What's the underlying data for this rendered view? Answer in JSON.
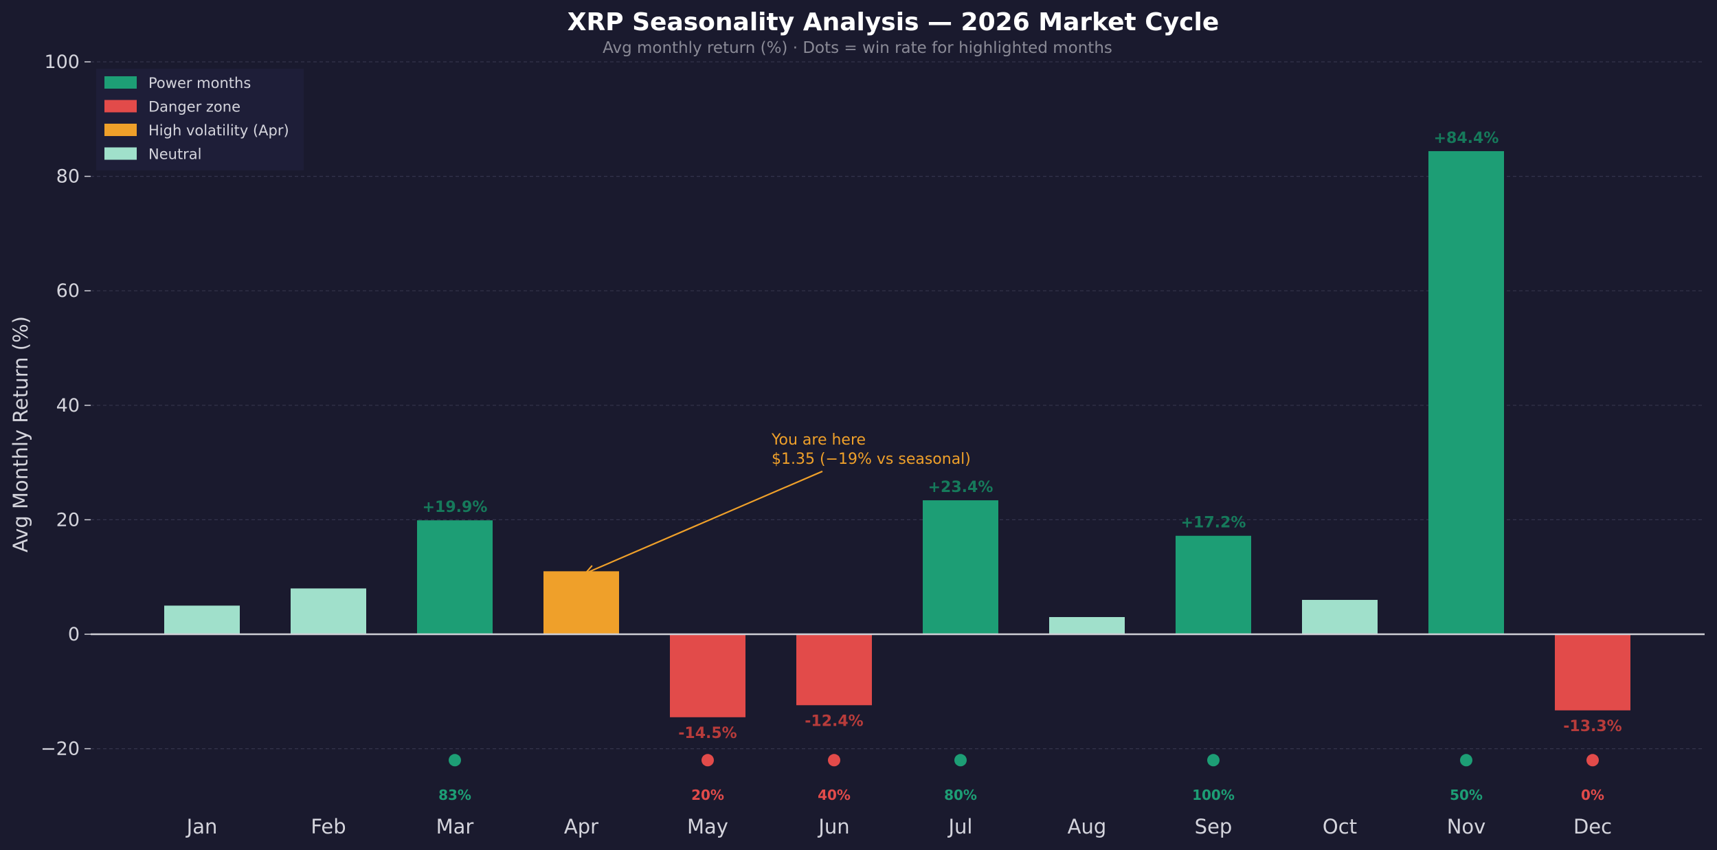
{
  "chart_data": {
    "type": "bar",
    "title": "XRP Seasonality Analysis — 2026 Market Cycle",
    "subtitle": "Avg monthly return (%) · Dots = win rate for highlighted months",
    "ylabel": "Avg Monthly Return (%)",
    "xlabel": "",
    "ylim": [
      -30,
      100
    ],
    "yticks": [
      -20,
      0,
      20,
      40,
      60,
      80,
      100
    ],
    "ytick_labels": [
      "−20",
      "0",
      "20",
      "40",
      "60",
      "80",
      "100"
    ],
    "grid": true,
    "categories": [
      "Jan",
      "Feb",
      "Mar",
      "Apr",
      "May",
      "Jun",
      "Jul",
      "Aug",
      "Sep",
      "Oct",
      "Nov",
      "Dec"
    ],
    "values": [
      5.0,
      8.0,
      19.9,
      11.0,
      -14.5,
      -12.4,
      23.4,
      3.0,
      17.2,
      6.0,
      84.4,
      -13.3
    ],
    "bar_categories": [
      "neutral",
      "neutral",
      "power",
      "volatile",
      "danger",
      "danger",
      "power",
      "neutral",
      "power",
      "neutral",
      "power",
      "danger"
    ],
    "value_labels": [
      "",
      "",
      "+19.9%",
      "",
      "-14.5%",
      "-12.4%",
      "+23.4%",
      "",
      "+17.2%",
      "",
      "+84.4%",
      "-13.3%"
    ],
    "win_rates": [
      null,
      null,
      83,
      null,
      20,
      40,
      80,
      null,
      100,
      null,
      50,
      0
    ],
    "win_rate_labels": [
      "",
      "",
      "83%",
      "",
      "20%",
      "40%",
      "80%",
      "",
      "100%",
      "",
      "50%",
      "0%"
    ],
    "win_rate_dot_y": -22,
    "legend": {
      "placement": "top-left",
      "items": [
        {
          "key": "power",
          "label": "Power months"
        },
        {
          "key": "danger",
          "label": "Danger zone"
        },
        {
          "key": "volatile",
          "label": "High volatility (Apr)"
        },
        {
          "key": "neutral",
          "label": "Neutral"
        }
      ]
    },
    "annotation": {
      "line1": "You are here",
      "line2": "$1.35 (−19% vs seasonal)",
      "target_category": "Apr",
      "target_value": 11.0,
      "text_value": 30.5
    }
  },
  "colors": {
    "background": "#1a1a2e",
    "power": "#1d9e75",
    "danger": "#e24b4a",
    "volatile": "#efa02a",
    "neutral": "#a0e0cb",
    "power_label": "#167a5b",
    "danger_label": "#b83c3b",
    "grid": "#34344c",
    "axis_text": "#d4d4dc",
    "subtitle": "#8a8a96",
    "title": "#ffffff",
    "zero_line": "#cfcfd6",
    "legend_bg": "#20203a"
  }
}
